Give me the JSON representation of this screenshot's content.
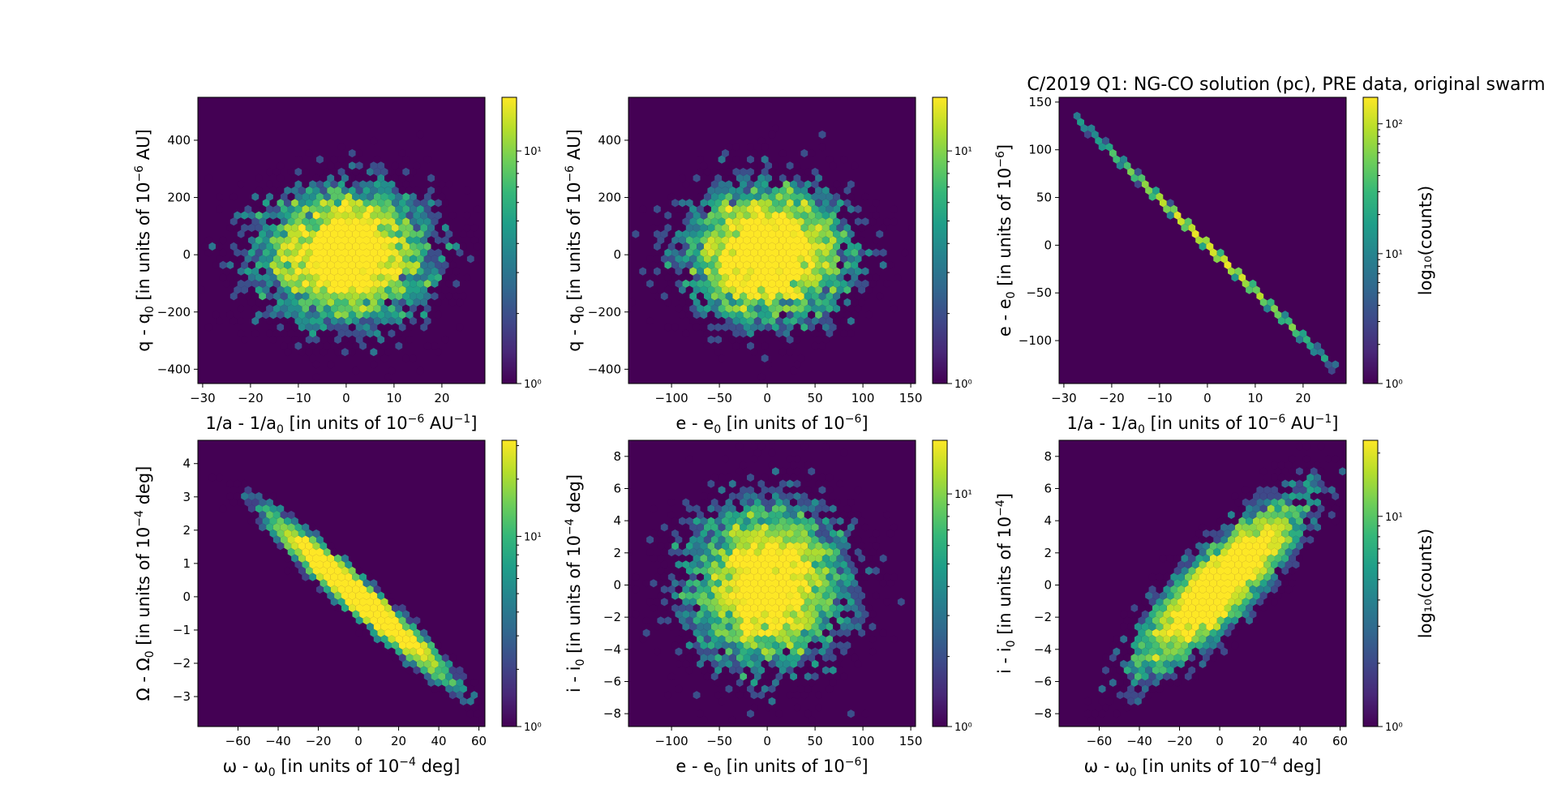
{
  "figure": {
    "title": "C/2019 Q1: NG-CO solution (pc), PRE data, original swarm",
    "colormap": [
      "#440154",
      "#482878",
      "#3e4989",
      "#31688e",
      "#26828e",
      "#1f9e89",
      "#35b779",
      "#6ece58",
      "#b5de2b",
      "#fde725"
    ]
  },
  "chart_data": [
    {
      "type": "heatmap",
      "subtype": "hexbin",
      "xlabel_parts": [
        "1/a - 1/a",
        "0",
        " [in units of 10",
        "−6",
        " AU",
        "−1",
        "]"
      ],
      "ylabel_parts": [
        "q - q",
        "0",
        " [in units of 10",
        "−6",
        " AU]"
      ],
      "xlim": [
        -31,
        29
      ],
      "ylim": [
        -450,
        550
      ],
      "xticks": [
        -30,
        -20,
        -10,
        0,
        10,
        20
      ],
      "xtick_labels": [
        "−30",
        "−20",
        "−10",
        "0",
        "10",
        "20"
      ],
      "yticks": [
        -400,
        -200,
        0,
        200,
        400
      ],
      "ytick_labels": [
        "−400",
        "−200",
        "0",
        "200",
        "400"
      ],
      "distribution": {
        "kind": "gaussian",
        "center": [
          0,
          0
        ],
        "sigma": [
          9,
          120
        ],
        "correlation": 0
      },
      "colorbar": {
        "scale": "log",
        "range": [
          1,
          17
        ],
        "ticks": [
          1,
          10
        ],
        "tick_labels": [
          "10⁰",
          "10¹"
        ],
        "label": ""
      }
    },
    {
      "type": "heatmap",
      "subtype": "hexbin",
      "xlabel_parts": [
        "e - e",
        "0",
        " [in units of 10",
        "−6",
        "]"
      ],
      "ylabel_parts": [
        "q - q",
        "0",
        " [in units of 10",
        "−6",
        " AU]"
      ],
      "xlim": [
        -145,
        155
      ],
      "ylim": [
        -450,
        550
      ],
      "xticks": [
        -100,
        -50,
        0,
        50,
        100,
        150
      ],
      "xtick_labels": [
        "−100",
        "−50",
        "0",
        "50",
        "100",
        "150"
      ],
      "yticks": [
        -400,
        -200,
        0,
        200,
        400
      ],
      "ytick_labels": [
        "−400",
        "−200",
        "0",
        "200",
        "400"
      ],
      "distribution": {
        "kind": "gaussian",
        "center": [
          0,
          0
        ],
        "sigma": [
          42,
          120
        ],
        "correlation": 0
      },
      "colorbar": {
        "scale": "log",
        "range": [
          1,
          17
        ],
        "ticks": [
          1,
          10
        ],
        "tick_labels": [
          "10⁰",
          "10¹"
        ],
        "label": ""
      }
    },
    {
      "type": "heatmap",
      "subtype": "hexbin",
      "xlabel_parts": [
        "1/a - 1/a",
        "0",
        " [in units of 10",
        "−6",
        " AU",
        "−1",
        "]"
      ],
      "ylabel_parts": [
        "e - e",
        "0",
        " [in units of 10",
        "−6",
        "]"
      ],
      "xlim": [
        -31,
        29
      ],
      "ylim": [
        -145,
        155
      ],
      "xticks": [
        -30,
        -20,
        -10,
        0,
        10,
        20
      ],
      "xtick_labels": [
        "−30",
        "−20",
        "−10",
        "0",
        "10",
        "20"
      ],
      "yticks": [
        -100,
        -50,
        0,
        50,
        100,
        150
      ],
      "ytick_labels": [
        "−100",
        "−50",
        "0",
        "50",
        "100",
        "150"
      ],
      "distribution": {
        "kind": "linear",
        "slope": -4.85,
        "x_range": [
          -28,
          27
        ]
      },
      "colorbar": {
        "scale": "log",
        "range": [
          1,
          160
        ],
        "ticks": [
          1,
          10,
          100
        ],
        "tick_labels": [
          "10⁰",
          "10¹",
          "10²"
        ],
        "label": "log₁₀(counts)"
      }
    },
    {
      "type": "heatmap",
      "subtype": "hexbin",
      "xlabel_parts": [
        "ω - ω",
        "0",
        " [in units of 10",
        "−4",
        " deg]"
      ],
      "ylabel_parts": [
        "Ω - Ω",
        "0",
        " [in units of 10",
        "−4",
        " deg]"
      ],
      "xlim": [
        -80,
        63
      ],
      "ylim": [
        -3.9,
        4.7
      ],
      "xticks": [
        -60,
        -40,
        -20,
        0,
        20,
        40,
        60
      ],
      "xtick_labels": [
        "−60",
        "−40",
        "−20",
        "0",
        "20",
        "40",
        "60"
      ],
      "yticks": [
        -3,
        -2,
        -1,
        0,
        1,
        2,
        3,
        4
      ],
      "ytick_labels": [
        "−3",
        "−2",
        "−1",
        "0",
        "1",
        "2",
        "3",
        "4"
      ],
      "distribution": {
        "kind": "gaussian",
        "center": [
          0,
          0
        ],
        "sigma": [
          20,
          1.1
        ],
        "correlation": -0.97
      },
      "colorbar": {
        "scale": "log",
        "range": [
          1,
          32
        ],
        "ticks": [
          1,
          10
        ],
        "tick_labels": [
          "10⁰",
          "10¹"
        ],
        "label": ""
      }
    },
    {
      "type": "heatmap",
      "subtype": "hexbin",
      "xlabel_parts": [
        "e - e",
        "0",
        " [in units of 10",
        "−6",
        "]"
      ],
      "ylabel_parts": [
        "i - i",
        "0",
        " [in units of 10",
        "−4",
        " deg]"
      ],
      "xlim": [
        -145,
        155
      ],
      "ylim": [
        -8.8,
        9.0
      ],
      "xticks": [
        -100,
        -50,
        0,
        50,
        100,
        150
      ],
      "xtick_labels": [
        "−100",
        "−50",
        "0",
        "50",
        "100",
        "150"
      ],
      "yticks": [
        -8,
        -6,
        -4,
        -2,
        0,
        2,
        4,
        6,
        8
      ],
      "ytick_labels": [
        "−8",
        "−6",
        "−4",
        "−2",
        "0",
        "2",
        "4",
        "6",
        "8"
      ],
      "distribution": {
        "kind": "gaussian",
        "center": [
          0,
          0
        ],
        "sigma": [
          42,
          2.6
        ],
        "correlation": 0
      },
      "colorbar": {
        "scale": "log",
        "range": [
          1,
          17
        ],
        "ticks": [
          1,
          10
        ],
        "tick_labels": [
          "10⁰",
          "10¹"
        ],
        "label": ""
      }
    },
    {
      "type": "heatmap",
      "subtype": "hexbin",
      "xlabel_parts": [
        "ω - ω",
        "0",
        " [in units of 10",
        "−4",
        " deg]"
      ],
      "ylabel_parts": [
        "i - i",
        "0",
        " [in units of 10",
        "−4",
        "]"
      ],
      "xlim": [
        -80,
        63
      ],
      "ylim": [
        -8.8,
        9.0
      ],
      "xticks": [
        -60,
        -40,
        -20,
        0,
        20,
        40,
        60
      ],
      "xtick_labels": [
        "−60",
        "−40",
        "−20",
        "0",
        "20",
        "40",
        "60"
      ],
      "yticks": [
        -8,
        -6,
        -4,
        -2,
        0,
        2,
        4,
        6,
        8
      ],
      "ytick_labels": [
        "−8",
        "−6",
        "−4",
        "−2",
        "0",
        "2",
        "4",
        "6",
        "8"
      ],
      "distribution": {
        "kind": "gaussian",
        "center": [
          0,
          0
        ],
        "sigma": [
          20,
          2.6
        ],
        "correlation": 0.85
      },
      "colorbar": {
        "scale": "log",
        "range": [
          1,
          23
        ],
        "ticks": [
          1,
          10
        ],
        "tick_labels": [
          "10⁰",
          "10¹"
        ],
        "label": "log₁₀(counts)"
      }
    }
  ]
}
